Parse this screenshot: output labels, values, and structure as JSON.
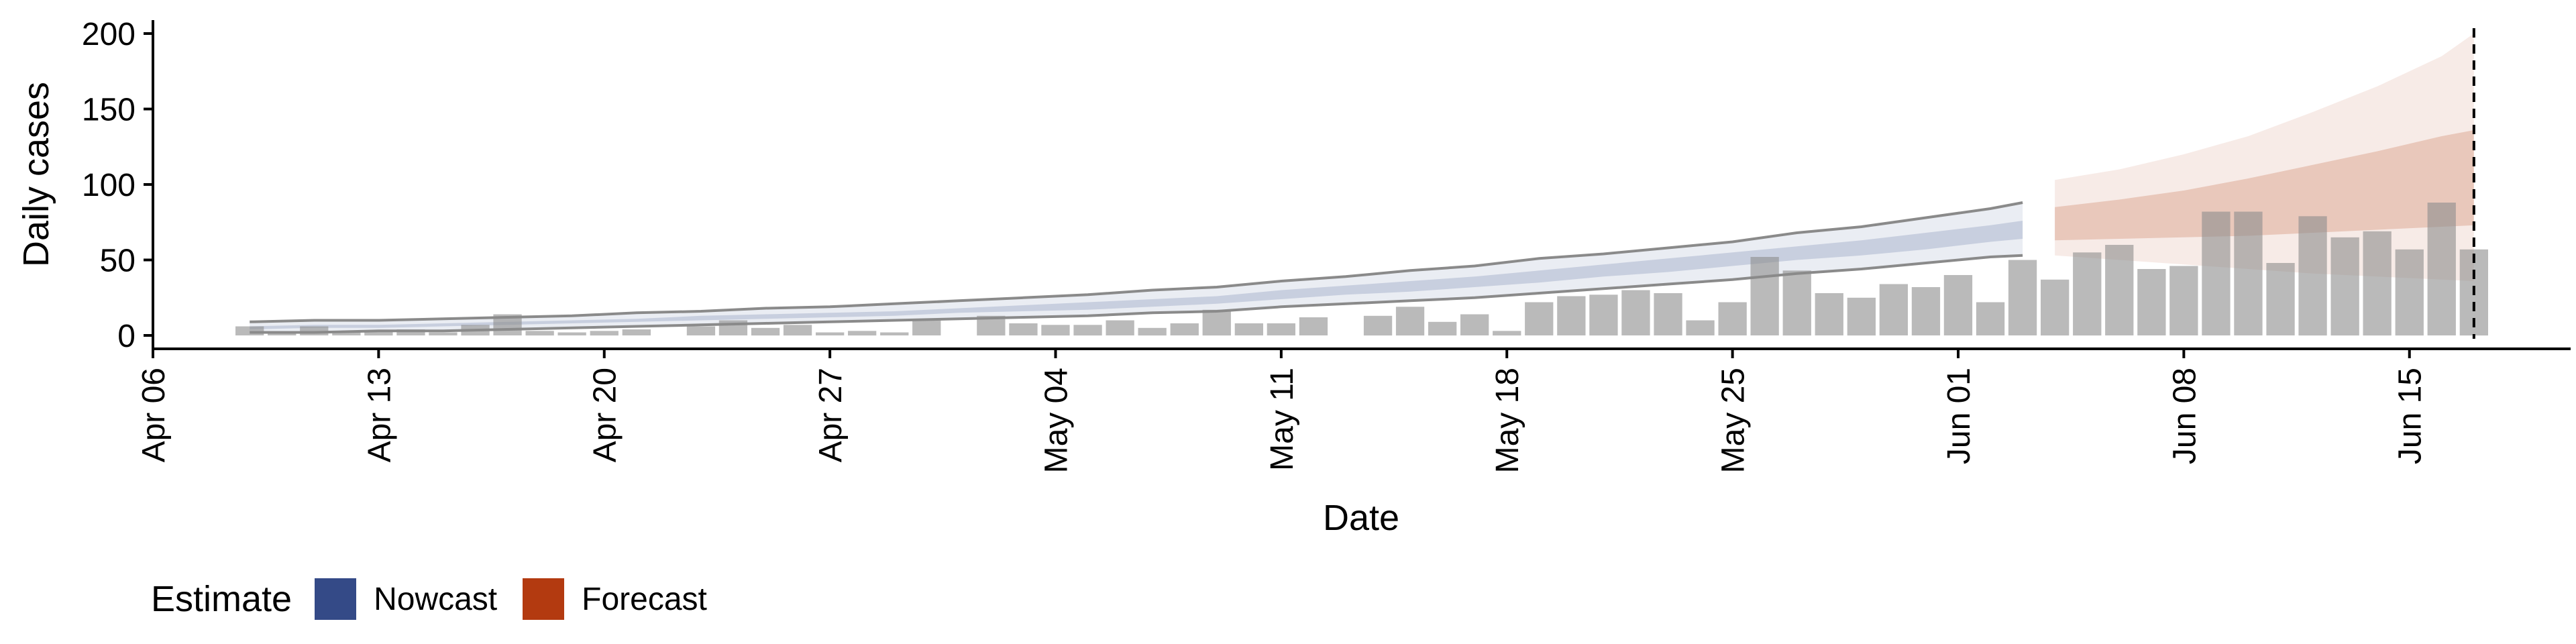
{
  "chart_data": {
    "type": "bar",
    "xlabel": "Date",
    "ylabel": "Daily cases",
    "x_ticks": [
      "Apr 06",
      "Apr 13",
      "Apr 20",
      "Apr 27",
      "May 04",
      "May 11",
      "May 18",
      "May 25",
      "Jun 01",
      "Jun 08",
      "Jun 15"
    ],
    "x_tick_dates": [
      "2020-04-06",
      "2020-04-13",
      "2020-04-20",
      "2020-04-27",
      "2020-05-04",
      "2020-05-11",
      "2020-05-18",
      "2020-05-25",
      "2020-06-01",
      "2020-06-08",
      "2020-06-15"
    ],
    "xlim": [
      "2020-04-06",
      "2020-06-20"
    ],
    "ylim": [
      0,
      210
    ],
    "y_ticks": [
      0,
      50,
      100,
      150,
      200
    ],
    "grid": false,
    "legend": {
      "title": "Estimate",
      "position": "bottom-left",
      "items": [
        {
          "label": "Nowcast",
          "color": "#344A87"
        },
        {
          "label": "Forecast",
          "color": "#B33A10"
        }
      ]
    },
    "vline_date": "2020-06-17",
    "reported_cases": {
      "dates": [
        "2020-04-09",
        "2020-04-10",
        "2020-04-11",
        "2020-04-12",
        "2020-04-13",
        "2020-04-14",
        "2020-04-15",
        "2020-04-16",
        "2020-04-17",
        "2020-04-18",
        "2020-04-19",
        "2020-04-20",
        "2020-04-21",
        "2020-04-22",
        "2020-04-23",
        "2020-04-24",
        "2020-04-25",
        "2020-04-26",
        "2020-04-27",
        "2020-04-28",
        "2020-04-29",
        "2020-04-30",
        "2020-05-01",
        "2020-05-02",
        "2020-05-03",
        "2020-05-04",
        "2020-05-05",
        "2020-05-06",
        "2020-05-07",
        "2020-05-08",
        "2020-05-09",
        "2020-05-10",
        "2020-05-11",
        "2020-05-12",
        "2020-05-13",
        "2020-05-14",
        "2020-05-15",
        "2020-05-16",
        "2020-05-17",
        "2020-05-18",
        "2020-05-19",
        "2020-05-20",
        "2020-05-21",
        "2020-05-22",
        "2020-05-23",
        "2020-05-24",
        "2020-05-25",
        "2020-05-26",
        "2020-05-27",
        "2020-05-28",
        "2020-05-29",
        "2020-05-30",
        "2020-05-31",
        "2020-06-01",
        "2020-06-02",
        "2020-06-03",
        "2020-06-04",
        "2020-06-05",
        "2020-06-06",
        "2020-06-07",
        "2020-06-08",
        "2020-06-09",
        "2020-06-10",
        "2020-06-11",
        "2020-06-12",
        "2020-06-13",
        "2020-06-14",
        "2020-06-15",
        "2020-06-16",
        "2020-06-17"
      ],
      "values": [
        6,
        2,
        6,
        2,
        3,
        4,
        2,
        7,
        14,
        3,
        2,
        3,
        4,
        0,
        6,
        10,
        5,
        7,
        2,
        3,
        2,
        10,
        0,
        13,
        8,
        7,
        7,
        10,
        5,
        8,
        17,
        8,
        8,
        12,
        0,
        13,
        19,
        9,
        14,
        3,
        22,
        26,
        27,
        30,
        28,
        10,
        22,
        52,
        43,
        28,
        25,
        34,
        32,
        40,
        22,
        50,
        37,
        55,
        60,
        44,
        46,
        82,
        82,
        48,
        79,
        65,
        69,
        57,
        88,
        57
      ]
    },
    "series": [
      {
        "name": "Nowcast",
        "dates": [
          "2020-04-09",
          "2020-04-11",
          "2020-04-13",
          "2020-04-15",
          "2020-04-17",
          "2020-04-19",
          "2020-04-21",
          "2020-04-23",
          "2020-04-25",
          "2020-04-27",
          "2020-04-29",
          "2020-05-01",
          "2020-05-03",
          "2020-05-05",
          "2020-05-07",
          "2020-05-09",
          "2020-05-11",
          "2020-05-13",
          "2020-05-15",
          "2020-05-17",
          "2020-05-19",
          "2020-05-21",
          "2020-05-23",
          "2020-05-25",
          "2020-05-27",
          "2020-05-29",
          "2020-05-31",
          "2020-06-02",
          "2020-06-03"
        ],
        "lower90": [
          2,
          2,
          3,
          3,
          4,
          5,
          6,
          7,
          8,
          9,
          10,
          11,
          12,
          13,
          15,
          16,
          19,
          21,
          23,
          25,
          28,
          31,
          34,
          37,
          41,
          44,
          48,
          52,
          53
        ],
        "upper90": [
          9,
          10,
          10,
          11,
          12,
          13,
          15,
          16,
          18,
          19,
          21,
          23,
          25,
          27,
          30,
          32,
          36,
          39,
          43,
          46,
          51,
          54,
          58,
          62,
          68,
          72,
          78,
          84,
          88
        ],
        "lower50": [
          4,
          5,
          5,
          6,
          7,
          8,
          9,
          10,
          11,
          12,
          13,
          15,
          16,
          17,
          19,
          21,
          24,
          27,
          29,
          32,
          35,
          39,
          42,
          46,
          50,
          53,
          57,
          62,
          64
        ],
        "upper50": [
          6,
          7,
          7,
          8,
          9,
          10,
          11,
          13,
          14,
          15,
          16,
          18,
          20,
          22,
          24,
          26,
          30,
          33,
          36,
          39,
          43,
          47,
          51,
          55,
          59,
          63,
          68,
          73,
          76
        ]
      },
      {
        "name": "Forecast",
        "dates": [
          "2020-06-04",
          "2020-06-06",
          "2020-06-08",
          "2020-06-10",
          "2020-06-12",
          "2020-06-14",
          "2020-06-16",
          "2020-06-17"
        ],
        "lower90": [
          53,
          50,
          47,
          44,
          41,
          39,
          37,
          36
        ],
        "upper90": [
          103,
          110,
          120,
          132,
          148,
          165,
          185,
          200
        ],
        "lower50": [
          63,
          64,
          65,
          66,
          68,
          70,
          72,
          73
        ],
        "upper50": [
          85,
          90,
          96,
          104,
          113,
          122,
          132,
          136
        ]
      }
    ]
  }
}
